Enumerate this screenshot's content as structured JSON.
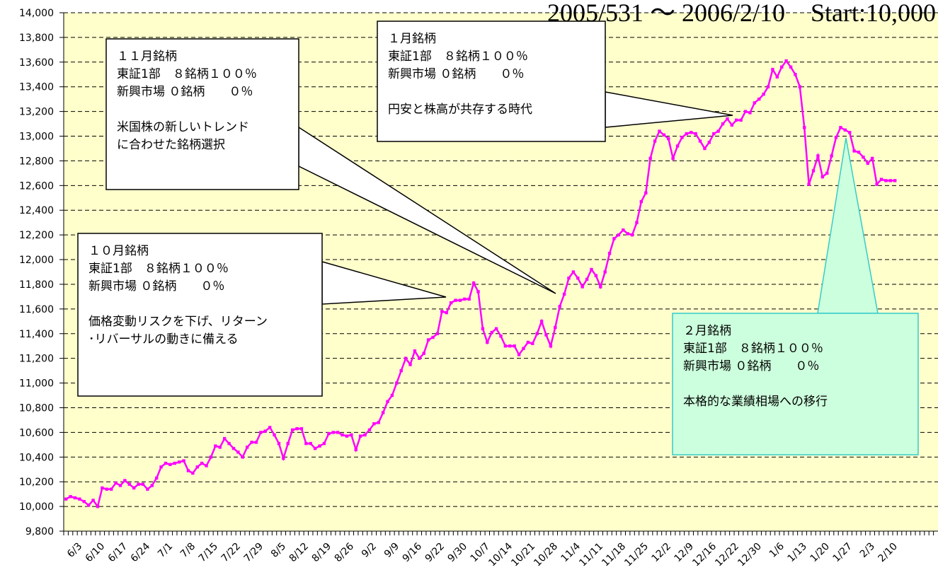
{
  "chart_data": {
    "type": "line",
    "title": "2005/531 ～ 2006/2/10　Start:10,000",
    "categories": [
      null,
      null,
      null,
      "6/3",
      null,
      null,
      null,
      null,
      "6/10",
      null,
      null,
      null,
      null,
      "6/17",
      null,
      null,
      null,
      null,
      "6/24",
      null,
      null,
      null,
      null,
      "7/1",
      null,
      null,
      null,
      null,
      "7/8",
      null,
      null,
      null,
      null,
      "7/15",
      null,
      null,
      null,
      null,
      "7/22",
      null,
      null,
      null,
      null,
      "7/29",
      null,
      null,
      null,
      null,
      "8/5",
      null,
      null,
      null,
      null,
      "8/12",
      null,
      null,
      null,
      null,
      "8/19",
      null,
      null,
      null,
      null,
      "8/26",
      null,
      null,
      null,
      null,
      "9/2",
      null,
      null,
      null,
      null,
      "9/9",
      null,
      null,
      null,
      null,
      "9/16",
      null,
      null,
      null,
      null,
      "9/22",
      null,
      null,
      null,
      null,
      "9/30",
      null,
      null,
      null,
      null,
      "10/7",
      null,
      null,
      null,
      null,
      "10/14",
      null,
      null,
      null,
      null,
      "10/21",
      null,
      null,
      null,
      null,
      "10/28",
      null,
      null,
      null,
      null,
      "11/4",
      null,
      null,
      null,
      null,
      "11/11",
      null,
      null,
      null,
      null,
      "11/18",
      null,
      null,
      null,
      null,
      "11/25",
      null,
      null,
      null,
      null,
      "12/2",
      null,
      null,
      null,
      null,
      "12/9",
      null,
      null,
      null,
      null,
      "12/16",
      null,
      null,
      null,
      null,
      "12/22",
      null,
      null,
      null,
      null,
      "12/30",
      null,
      null,
      null,
      null,
      "1/6",
      null,
      null,
      null,
      null,
      "1/13",
      null,
      null,
      null,
      null,
      "1/20",
      null,
      null,
      null,
      null,
      "1/27",
      null,
      null,
      null,
      null,
      "2/3",
      null,
      null,
      null,
      null,
      "2/10",
      null,
      null,
      null,
      null,
      null,
      null,
      null,
      null,
      null
    ],
    "values": [
      10060,
      10080,
      10070,
      10060,
      10040,
      10010,
      10050,
      10000,
      10150,
      10140,
      10140,
      10190,
      10170,
      10210,
      10180,
      10150,
      10180,
      10180,
      10140,
      10170,
      10230,
      10320,
      10350,
      10340,
      10350,
      10360,
      10370,
      10290,
      10270,
      10320,
      10350,
      10330,
      10400,
      10490,
      10480,
      10550,
      10510,
      10470,
      10440,
      10400,
      10480,
      10520,
      10520,
      10600,
      10610,
      10640,
      10580,
      10510,
      10390,
      10510,
      10620,
      10630,
      10630,
      10510,
      10510,
      10470,
      10490,
      10510,
      10590,
      10600,
      10600,
      10580,
      10570,
      10580,
      10460,
      10570,
      10580,
      10620,
      10670,
      10680,
      10760,
      10850,
      10900,
      11000,
      11100,
      11200,
      11150,
      11260,
      11200,
      11240,
      11350,
      11370,
      11400,
      11580,
      11570,
      11650,
      11670,
      11670,
      11680,
      11680,
      11810,
      11740,
      11440,
      11330,
      11410,
      11440,
      11380,
      11300,
      11300,
      11300,
      11230,
      11280,
      11330,
      11320,
      11400,
      11500,
      11390,
      11300,
      11450,
      11620,
      11720,
      11850,
      11900,
      11850,
      11780,
      11840,
      11920,
      11870,
      11780,
      11900,
      12050,
      12170,
      12200,
      12240,
      12210,
      12200,
      12300,
      12470,
      12540,
      12820,
      12960,
      13040,
      13010,
      12980,
      12820,
      12920,
      12990,
      13020,
      13030,
      13020,
      12960,
      12900,
      12950,
      13020,
      13040,
      13100,
      13140,
      13090,
      13130,
      13130,
      13200,
      13190,
      13270,
      13300,
      13340,
      13400,
      13540,
      13480,
      13560,
      13610,
      13560,
      13500,
      13400,
      13070,
      12610,
      12720,
      12840,
      12670,
      12700,
      12840,
      12990,
      13070,
      13050,
      13030,
      12880,
      12870,
      12830,
      12780,
      12820,
      12610,
      12650,
      12640,
      12640,
      12640,
      null,
      null,
      null,
      null,
      null,
      null,
      null,
      null,
      null
    ],
    "color": "#ff00ff",
    "ylim": [
      9800,
      14000
    ],
    "yticks": [
      {
        "value": 9800,
        "label": "9,800"
      },
      {
        "value": 10000,
        "label": "10,000"
      },
      {
        "value": 10200,
        "label": "10,200"
      },
      {
        "value": 10400,
        "label": "10,400"
      },
      {
        "value": 10600,
        "label": "10,600"
      },
      {
        "value": 10800,
        "label": "10,800"
      },
      {
        "value": 11000,
        "label": "11,000"
      },
      {
        "value": 11200,
        "label": "11,200"
      },
      {
        "value": 11400,
        "label": "11,400"
      },
      {
        "value": 11600,
        "label": "11,600"
      },
      {
        "value": 11800,
        "label": "11,800"
      },
      {
        "value": 12000,
        "label": "12,000"
      },
      {
        "value": 12200,
        "label": "12,200"
      },
      {
        "value": 12400,
        "label": "12,400"
      },
      {
        "value": 12600,
        "label": "12,600"
      },
      {
        "value": 12800,
        "label": "12,800"
      },
      {
        "value": 13000,
        "label": "13,000"
      },
      {
        "value": 13200,
        "label": "13,200"
      },
      {
        "value": 13400,
        "label": "13,400"
      },
      {
        "value": 13600,
        "label": "13,600"
      },
      {
        "value": 13800,
        "label": "13,800"
      },
      {
        "value": 14000,
        "label": "14,000"
      }
    ],
    "grid": true,
    "annotations": [
      {
        "paragraphs": [
          [
            "１０月銘柄",
            "東証1部　８銘柄１００％",
            "新興市場 ０銘柄　　０％"
          ],
          [
            "価格変動リスクを下げ、リターン",
            "･リバーサルの動きに備える"
          ]
        ]
      },
      {
        "paragraphs": [
          [
            "１１月銘柄",
            "東証1部　８銘柄１００％",
            "新興市場 ０銘柄　　０％"
          ],
          [
            "米国株の新しいトレンド",
            "に合わせた銘柄選択"
          ]
        ]
      },
      {
        "paragraphs": [
          [
            "１月銘柄",
            "東証1部　８銘柄１００％",
            "新興市場 ０銘柄　　０％"
          ],
          [
            "円安と株高が共存する時代"
          ]
        ]
      },
      {
        "paragraphs": [
          [
            "２月銘柄",
            "東証1部　８銘柄１００％",
            "新興市場 ０銘柄　　０％"
          ],
          [
            "本格的な業績相場への移行"
          ]
        ]
      }
    ]
  }
}
